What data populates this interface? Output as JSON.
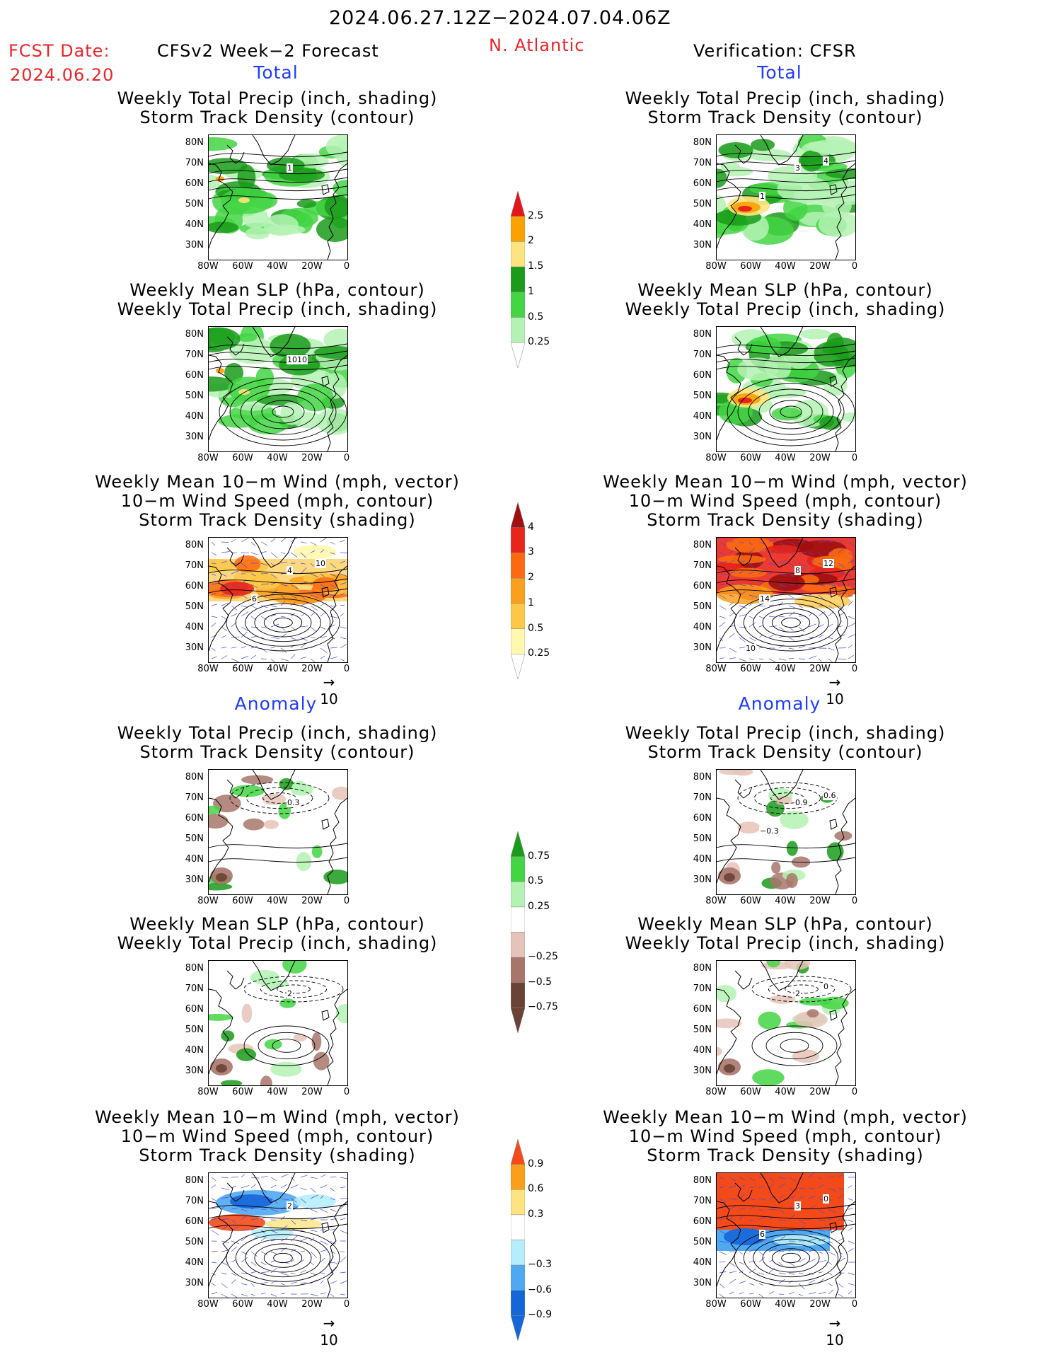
{
  "header": {
    "date_range": "2024.06.27.12Z−2024.07.04.06Z",
    "fcst_label": "FCST Date:",
    "fcst_date": "2024.06.20",
    "left_title": "CFSv2 Week−2 Forecast",
    "region": "N. Atlantic",
    "right_title": "Verification: CFSR"
  },
  "sections": {
    "total": "Total",
    "anomaly": "Anomaly"
  },
  "panel_titles": {
    "precip_storm": [
      "Weekly Total Precip (inch, shading)",
      "Storm Track Density (contour)"
    ],
    "slp_precip": [
      "Weekly Mean SLP (hPa, contour)",
      "Weekly Total Precip (inch, shading)"
    ],
    "wind_storm": [
      "Weekly Mean 10−m Wind (mph, vector)",
      "10−m Wind Speed (mph, contour)",
      "Storm Track Density (shading)"
    ]
  },
  "axes": {
    "lat": [
      "80N",
      "70N",
      "60N",
      "50N",
      "40N",
      "30N"
    ],
    "lon": [
      "80W",
      "60W",
      "40W",
      "20W",
      "0"
    ]
  },
  "vector_ref": "10",
  "contour_labels": {
    "f_total_precip": [
      "1"
    ],
    "v_total_precip": [
      "3",
      "4",
      "1"
    ],
    "f_total_slp": [
      "1010"
    ],
    "f_total_wind": [
      "4",
      "10",
      "6"
    ],
    "v_total_wind": [
      "8",
      "12",
      "14",
      "10"
    ],
    "f_anom_precip": [
      "0.3"
    ],
    "v_anom_precip": [
      "0.9",
      "0.6",
      "−0.3"
    ],
    "f_anom_slp": [
      "2"
    ],
    "v_anom_slp": [
      "2",
      "0"
    ],
    "f_anom_wind": [
      "2"
    ],
    "v_anom_wind": [
      "3",
      "0",
      "6"
    ]
  },
  "colorbars": {
    "total_precip": {
      "labels": [
        "2.5",
        "2",
        "1.5",
        "1",
        "0.5",
        "0.25"
      ],
      "colors": [
        "#e3161b",
        "#fba100",
        "#fde480",
        "#1a9b1a",
        "#43d543",
        "#b4f2b4"
      ]
    },
    "total_storm": {
      "labels": [
        "4",
        "3",
        "2",
        "1",
        "0.5",
        "0.25"
      ],
      "colors": [
        "#a01010",
        "#e8251c",
        "#fb6a10",
        "#fba01c",
        "#fdc847",
        "#fff8ad"
      ]
    },
    "anom_precip": {
      "labels": [
        "0.75",
        "0.5",
        "0.25",
        "−0.25",
        "−0.5",
        "−0.75"
      ],
      "colors": [
        "#1a9b1a",
        "#43d543",
        "#b4f2b4",
        "#ffffff",
        "#e6c3b8",
        "#a8756b",
        "#6b4236"
      ]
    },
    "anom_storm": {
      "labels": [
        "0.9",
        "0.6",
        "0.3",
        "−0.3",
        "−0.6",
        "−0.9"
      ],
      "colors": [
        "#f44a1a",
        "#fb9e1a",
        "#fde480",
        "#ffffff",
        "#b4eefc",
        "#4fa8f2",
        "#1467d9"
      ]
    }
  }
}
